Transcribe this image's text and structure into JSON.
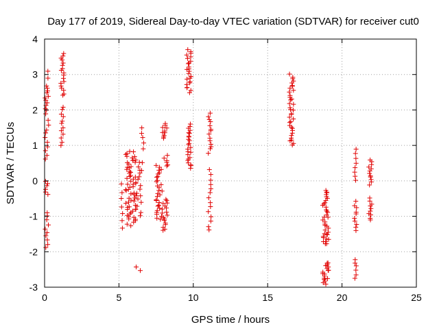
{
  "chart_data": {
    "type": "scatter",
    "title": "Day 177 of 2019, Sidereal Day-to-day VTEC variation (SDTVAR) for receiver cut0",
    "xlabel": "GPS time / hours",
    "ylabel": "SDTVAR / TECUs",
    "xlim": [
      0,
      25
    ],
    "ylim": [
      -3,
      4
    ],
    "xticks": [
      "0",
      "5",
      "10",
      "15",
      "20",
      "25"
    ],
    "yticks": [
      "-3",
      "-2",
      "-1",
      "0",
      "1",
      "2",
      "3",
      "4"
    ],
    "grid": true,
    "marker": "plus",
    "color": "#e00000",
    "clusters": [
      {
        "x": 0.15,
        "xw": 0.12,
        "segments": [
          [
            0.6,
            1.7,
            10
          ],
          [
            1.9,
            2.7,
            12
          ],
          [
            -0.4,
            0.0,
            6
          ],
          [
            -1.9,
            -0.9,
            10
          ],
          [
            2.9,
            3.1,
            2
          ]
        ]
      },
      {
        "x": 1.2,
        "xw": 0.12,
        "segments": [
          [
            2.4,
            3.6,
            18
          ],
          [
            1.0,
            2.1,
            12
          ]
        ]
      },
      {
        "x": 5.2,
        "xw": 0.06,
        "segments": [
          [
            -1.35,
            -0.1,
            7
          ]
        ]
      },
      {
        "x": 5.8,
        "xw": 0.35,
        "segments": [
          [
            -1.25,
            0.85,
            60
          ]
        ]
      },
      {
        "x": 6.3,
        "xw": 0.2,
        "segments": [
          [
            -1.0,
            0.6,
            18
          ],
          [
            -2.55,
            -2.45,
            2
          ]
        ]
      },
      {
        "x": 6.6,
        "xw": 0.08,
        "segments": [
          [
            0.9,
            1.5,
            5
          ],
          [
            0.3,
            0.5,
            2
          ]
        ]
      },
      {
        "x": 7.7,
        "xw": 0.2,
        "segments": [
          [
            -1.1,
            0.45,
            30
          ]
        ]
      },
      {
        "x": 8.1,
        "xw": 0.2,
        "segments": [
          [
            -1.4,
            -0.5,
            18
          ],
          [
            0.4,
            0.7,
            6
          ],
          [
            1.2,
            1.6,
            10
          ]
        ]
      },
      {
        "x": 9.7,
        "xw": 0.15,
        "segments": [
          [
            2.5,
            3.7,
            24
          ],
          [
            0.35,
            1.6,
            24
          ]
        ]
      },
      {
        "x": 11.1,
        "xw": 0.1,
        "segments": [
          [
            0.8,
            1.9,
            14
          ],
          [
            -1.4,
            0.3,
            14
          ]
        ]
      },
      {
        "x": 16.6,
        "xw": 0.15,
        "segments": [
          [
            1.0,
            3.0,
            36
          ]
        ]
      },
      {
        "x": 18.9,
        "xw": 0.2,
        "segments": [
          [
            -2.9,
            -2.3,
            18
          ],
          [
            -1.8,
            -1.5,
            10
          ],
          [
            -1.5,
            -0.25,
            26
          ]
        ]
      },
      {
        "x": 20.9,
        "xw": 0.08,
        "segments": [
          [
            -2.75,
            -2.2,
            6
          ],
          [
            -1.4,
            -0.6,
            10
          ],
          [
            0.0,
            0.9,
            8
          ]
        ]
      },
      {
        "x": 21.9,
        "xw": 0.1,
        "segments": [
          [
            -1.1,
            -0.5,
            10
          ],
          [
            -0.1,
            0.6,
            12
          ]
        ]
      }
    ]
  }
}
